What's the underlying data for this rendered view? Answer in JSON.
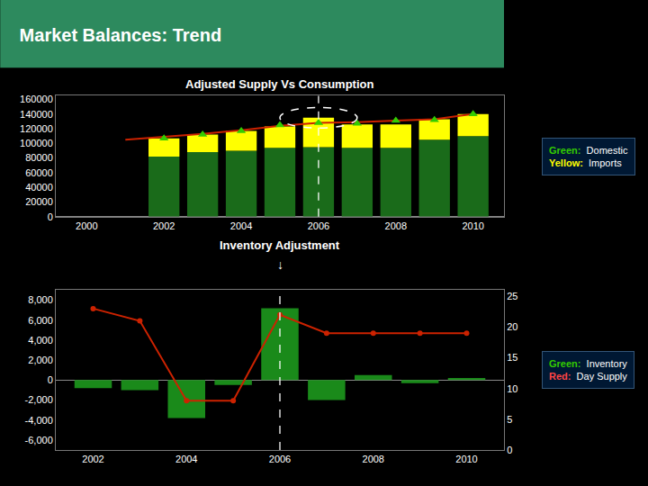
{
  "chart_data": [
    {
      "type": "bar",
      "title": "Market Balances: Trend",
      "subtitle": "Adjusted Supply Vs Consumption",
      "stacked": true,
      "grid": false,
      "x": [
        2002,
        2003,
        2004,
        2005,
        2006,
        2007,
        2008,
        2009,
        2010
      ],
      "series": [
        {
          "color": "#1a6b1a",
          "values": [
            82000,
            88000,
            90000,
            94000,
            95000,
            94000,
            94000,
            105000,
            110000
          ]
        },
        {
          "color": "#ffff00",
          "values": [
            25000,
            24000,
            27000,
            29000,
            40000,
            32000,
            32000,
            28000,
            30000
          ]
        },
        {
          "type": "line",
          "color": "#cc2200",
          "x": [
            2001,
            2002,
            2003,
            2004,
            2005,
            2006,
            2007,
            2008,
            2009,
            2010
          ],
          "values": [
            105000,
            109000,
            113000,
            118000,
            124000,
            128000,
            129000,
            131000,
            133000,
            140000
          ]
        },
        {
          "type": "scatter",
          "marker": "triangle-up",
          "color": "#33cc00",
          "values": [
            107000,
            112000,
            117000,
            125000,
            128000,
            127000,
            131000,
            132000,
            140000
          ]
        }
      ],
      "xlim": [
        1999.2,
        2010.8
      ],
      "xticks": [
        2000,
        2002,
        2004,
        2006,
        2008,
        2010
      ],
      "ylim": [
        0,
        165000
      ],
      "yticks": [
        0,
        20000,
        40000,
        60000,
        80000,
        100000,
        120000,
        140000,
        160000
      ],
      "annotations": [
        {
          "x": 2006,
          "line_style": "dash"
        },
        {
          "text": "Green:",
          "color": "#33cc00"
        },
        {
          "text": "Domestic"
        },
        {
          "text": "Yellow:",
          "color": "#ffff00"
        },
        {
          "text": "Imports"
        }
      ]
    },
    {
      "type": "bar",
      "subtitle": "Inventory Adjustment",
      "grid": false,
      "x": [
        2002,
        2003,
        2004,
        2005,
        2006,
        2007,
        2008,
        2009,
        2010
      ],
      "series": [
        {
          "color": "#1a8a1a",
          "values": [
            -800,
            -1000,
            -3800,
            -500,
            7200,
            -2000,
            500,
            -300,
            200
          ]
        },
        {
          "type": "line",
          "axis": "y2",
          "marker": "circle",
          "color": "#cc2200",
          "values": [
            23,
            21,
            8,
            8,
            22,
            19,
            19,
            19,
            19
          ]
        }
      ],
      "xlim": [
        2001.2,
        2010.8
      ],
      "xticks": [
        2002,
        2004,
        2006,
        2008,
        2010
      ],
      "ylim": [
        -7000,
        9000
      ],
      "yticks": [
        {
          "value": -6000,
          "label": "-6,000"
        },
        {
          "value": -4000,
          "label": "-4,000"
        },
        {
          "value": -2000,
          "label": "-2,000"
        },
        0,
        {
          "value": 2000,
          "label": "2,000"
        },
        {
          "value": 4000,
          "label": "4,000"
        },
        {
          "value": 6000,
          "label": "6,000"
        },
        {
          "value": 8000,
          "label": "8,000"
        }
      ],
      "y2lim": [
        0,
        26
      ],
      "y2ticks": [
        0,
        5,
        10,
        15,
        20,
        25
      ],
      "annotations": [
        {
          "text": "↓"
        },
        {
          "x": 2006,
          "line_style": "dash"
        },
        {
          "text": "Green:",
          "color": "#33cc00"
        },
        {
          "text": "Inventory"
        },
        {
          "text": "Red:",
          "color": "#ff4444"
        },
        {
          "text": "Day Supply"
        }
      ]
    }
  ]
}
